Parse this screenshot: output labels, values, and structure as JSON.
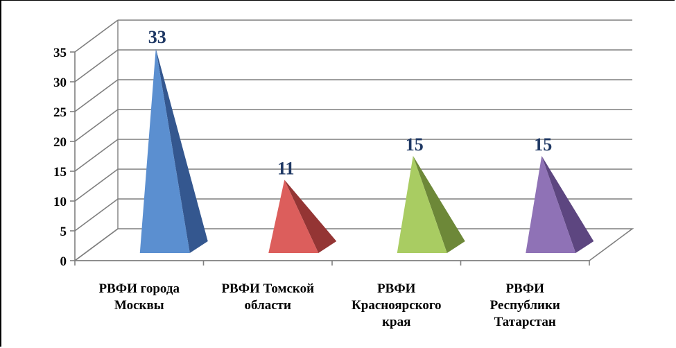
{
  "chart_data": {
    "type": "bar",
    "style": "3d-pyramid",
    "title": "",
    "xlabel": "",
    "ylabel": "",
    "categories": [
      [
        "РВФИ города",
        "Москвы"
      ],
      [
        "РВФИ Томской",
        "области"
      ],
      [
        "РВФИ",
        "Красноярского",
        "края"
      ],
      [
        "РВФИ",
        "Республики",
        "Татарстан"
      ]
    ],
    "values": [
      33,
      11,
      15,
      15
    ],
    "data_labels": [
      "33",
      "11",
      "15",
      "15"
    ],
    "ylim": [
      0,
      35
    ],
    "yticks": [
      "0",
      "5",
      "10",
      "15",
      "20",
      "25",
      "30",
      "35"
    ],
    "grid": true,
    "legend": "none",
    "colors": [
      {
        "light": "#5b8fd0",
        "dark": "#34578f"
      },
      {
        "light": "#dc5e5c",
        "dark": "#943534"
      },
      {
        "light": "#a9cc62",
        "dark": "#6d8838"
      },
      {
        "light": "#8f72b6",
        "dark": "#5d4680"
      }
    ],
    "gridline_color": "#7f7f7f",
    "data_label_color": "#1f3864"
  }
}
